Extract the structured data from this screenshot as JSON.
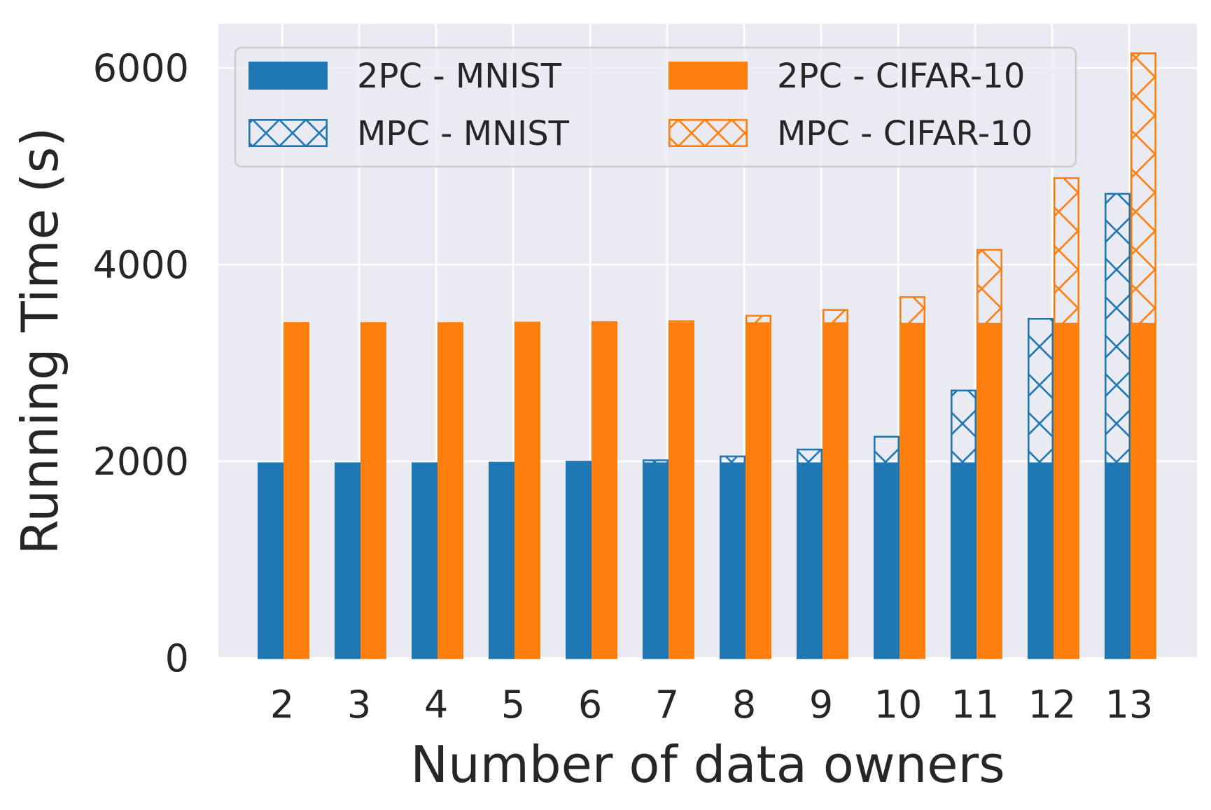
{
  "chart_data": {
    "type": "bar",
    "title": "",
    "xlabel": "Number of data owners",
    "ylabel": "Running Time (s)",
    "categories": [
      "2",
      "3",
      "4",
      "5",
      "6",
      "7",
      "8",
      "9",
      "10",
      "11",
      "12",
      "13"
    ],
    "ylim": [
      0,
      6450
    ],
    "yticks": [
      0,
      2000,
      4000,
      6000
    ],
    "ytick_labels": [
      "0",
      "2000",
      "4000",
      "6000"
    ],
    "grid": true,
    "legend_placement": "top-left",
    "legend_columns": 2,
    "colors": {
      "mnist": "#1f77b4",
      "cifar": "#ff7f0e",
      "background": "#eaeaf2",
      "grid": "#ffffff",
      "text": "#262626"
    },
    "series": [
      {
        "name": "2PC - MNIST",
        "group": "MNIST",
        "style": "solid",
        "values": [
          1990,
          1990,
          1990,
          1995,
          2005,
          1990,
          1990,
          1990,
          1990,
          1990,
          1990,
          1990
        ]
      },
      {
        "name": "MPC - MNIST",
        "group": "MNIST",
        "style": "hatched",
        "values": [
          1990,
          1990,
          1990,
          1995,
          2005,
          2020,
          2060,
          2130,
          2260,
          2730,
          3460,
          4730
        ]
      },
      {
        "name": "2PC - CIFAR-10",
        "group": "CIFAR-10",
        "style": "solid",
        "values": [
          3415,
          3415,
          3415,
          3420,
          3425,
          3415,
          3415,
          3415,
          3410,
          3410,
          3410,
          3410
        ]
      },
      {
        "name": "MPC - CIFAR-10",
        "group": "CIFAR-10",
        "style": "hatched",
        "values": [
          3415,
          3415,
          3415,
          3420,
          3425,
          3435,
          3490,
          3550,
          3680,
          4160,
          4890,
          6160
        ]
      }
    ],
    "legend": [
      {
        "label": "2PC - MNIST",
        "color_key": "mnist",
        "style": "solid"
      },
      {
        "label": "2PC - CIFAR-10",
        "color_key": "cifar",
        "style": "solid"
      },
      {
        "label": "MPC - MNIST",
        "color_key": "mnist",
        "style": "hatched"
      },
      {
        "label": "MPC - CIFAR-10",
        "color_key": "cifar",
        "style": "hatched"
      }
    ]
  }
}
